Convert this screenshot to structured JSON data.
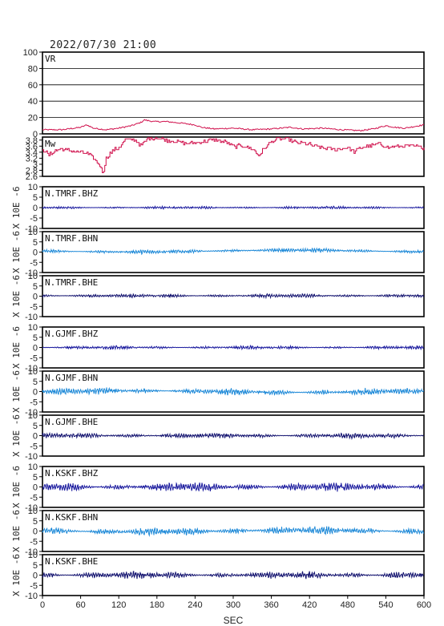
{
  "header": {
    "datetime": "2022/07/30 21:00"
  },
  "colors": {
    "vr": "#d0104c",
    "mw": "#d0104c",
    "bhz": "#1a1a9e",
    "bhn": "#1f8ad8",
    "bhe": "#141470",
    "frame": "#000000",
    "grid": "#000000"
  },
  "chart_data": {
    "type": "line",
    "x_label": "SEC",
    "x_range": [
      0,
      600
    ],
    "x_ticks": [
      0,
      60,
      120,
      180,
      240,
      300,
      360,
      420,
      480,
      540,
      600
    ],
    "panels": [
      {
        "key": "vr",
        "label": "VR",
        "y_range": [
          0,
          100
        ],
        "y_ticks": [
          0,
          20,
          40,
          60,
          80,
          100
        ],
        "grid": true,
        "series_kind": "vr",
        "values": [
          [
            0,
            5
          ],
          [
            30,
            5
          ],
          [
            60,
            8
          ],
          [
            70,
            11
          ],
          [
            80,
            7
          ],
          [
            100,
            5
          ],
          [
            120,
            7
          ],
          [
            140,
            10
          ],
          [
            155,
            14
          ],
          [
            160,
            17
          ],
          [
            175,
            15
          ],
          [
            195,
            15
          ],
          [
            220,
            13
          ],
          [
            240,
            11
          ],
          [
            250,
            8
          ],
          [
            270,
            6
          ],
          [
            300,
            7
          ],
          [
            330,
            5
          ],
          [
            360,
            6
          ],
          [
            390,
            8
          ],
          [
            410,
            6
          ],
          [
            440,
            7
          ],
          [
            470,
            5
          ],
          [
            500,
            4
          ],
          [
            520,
            6
          ],
          [
            540,
            10
          ],
          [
            555,
            8
          ],
          [
            570,
            7
          ],
          [
            600,
            11
          ]
        ]
      },
      {
        "key": "mw",
        "label": "Mw",
        "y_range": [
          2.6,
          3.9
        ],
        "y_ticks": [
          2.6,
          2.8,
          3.0,
          3.2,
          3.4,
          3.6,
          3.8
        ],
        "grid": false,
        "series_kind": "mw",
        "values": [
          [
            0,
            3.5
          ],
          [
            10,
            3.3
          ],
          [
            20,
            3.45
          ],
          [
            30,
            3.5
          ],
          [
            50,
            3.42
          ],
          [
            70,
            3.36
          ],
          [
            80,
            3.2
          ],
          [
            90,
            2.95
          ],
          [
            95,
            2.72
          ],
          [
            100,
            3.2
          ],
          [
            110,
            3.45
          ],
          [
            120,
            3.55
          ],
          [
            130,
            3.8
          ],
          [
            145,
            3.82
          ],
          [
            155,
            3.6
          ],
          [
            165,
            3.85
          ],
          [
            180,
            3.88
          ],
          [
            195,
            3.8
          ],
          [
            210,
            3.75
          ],
          [
            225,
            3.7
          ],
          [
            240,
            3.7
          ],
          [
            270,
            3.82
          ],
          [
            290,
            3.72
          ],
          [
            300,
            3.58
          ],
          [
            315,
            3.62
          ],
          [
            330,
            3.5
          ],
          [
            340,
            3.3
          ],
          [
            350,
            3.55
          ],
          [
            360,
            3.75
          ],
          [
            370,
            3.85
          ],
          [
            385,
            3.82
          ],
          [
            400,
            3.72
          ],
          [
            420,
            3.65
          ],
          [
            440,
            3.55
          ],
          [
            460,
            3.48
          ],
          [
            480,
            3.55
          ],
          [
            490,
            3.4
          ],
          [
            500,
            3.55
          ],
          [
            515,
            3.6
          ],
          [
            530,
            3.68
          ],
          [
            545,
            3.55
          ],
          [
            560,
            3.6
          ],
          [
            580,
            3.6
          ],
          [
            600,
            3.55
          ]
        ]
      },
      {
        "key": "tmrf_bhz",
        "label": "N.TMRF.BHZ",
        "component": "bhz",
        "y_range": [
          -10,
          10
        ],
        "y_ticks": [
          -10,
          -5,
          0,
          5,
          10
        ],
        "amplitude": 0.35,
        "offset": 0.0,
        "y_unit": "X 10E -6"
      },
      {
        "key": "tmrf_bhn",
        "label": "N.TMRF.BHN",
        "component": "bhn",
        "y_range": [
          -10,
          10
        ],
        "y_ticks": [
          -10,
          -5,
          0,
          5,
          10
        ],
        "amplitude": 0.55,
        "offset": 0.5,
        "y_unit": "X 10E -6"
      },
      {
        "key": "tmrf_bhe",
        "label": "N.TMRF.BHE",
        "component": "bhe",
        "y_range": [
          -10,
          10
        ],
        "y_ticks": [
          -10,
          -5,
          0,
          5,
          10
        ],
        "amplitude": 0.5,
        "offset": 0.2,
        "y_unit": "X 10E -6"
      },
      {
        "key": "gjmf_bhz",
        "label": "N.GJMF.BHZ",
        "component": "bhz",
        "y_range": [
          -10,
          10
        ],
        "y_ticks": [
          -10,
          -5,
          0,
          5,
          10
        ],
        "amplitude": 0.45,
        "offset": 0.0,
        "y_unit": "X 10E -6"
      },
      {
        "key": "gjmf_bhn",
        "label": "N.GJMF.BHN",
        "component": "bhn",
        "y_range": [
          -10,
          10
        ],
        "y_ticks": [
          -10,
          -5,
          0,
          5,
          10
        ],
        "amplitude": 0.9,
        "offset": 0.0,
        "y_unit": "X 10E -6"
      },
      {
        "key": "gjmf_bhe",
        "label": "N.GJMF.BHE",
        "component": "bhe",
        "y_range": [
          -10,
          10
        ],
        "y_ticks": [
          -10,
          -5,
          0,
          5,
          10
        ],
        "amplitude": 0.7,
        "offset": 0.0,
        "y_unit": "X 10E -6"
      },
      {
        "key": "kskf_bhz",
        "label": "N.KSKF.BHZ",
        "component": "bhz",
        "y_range": [
          -10,
          10
        ],
        "y_ticks": [
          -10,
          -5,
          0,
          5,
          10
        ],
        "amplitude": 1.2,
        "offset": 0.0,
        "y_unit": "X 10E -6"
      },
      {
        "key": "kskf_bhn",
        "label": "N.KSKF.BHN",
        "component": "bhn",
        "y_range": [
          -10,
          10
        ],
        "y_ticks": [
          -10,
          -5,
          0,
          5,
          10
        ],
        "amplitude": 1.1,
        "offset": 0.0,
        "y_unit": "X 10E -6"
      },
      {
        "key": "kskf_bhe",
        "label": "N.KSKF.BHE",
        "component": "bhe",
        "y_range": [
          -10,
          10
        ],
        "y_ticks": [
          -10,
          -5,
          0,
          5,
          10
        ],
        "amplitude": 1.0,
        "offset": 0.0,
        "y_unit": "X 10E -6"
      }
    ]
  }
}
